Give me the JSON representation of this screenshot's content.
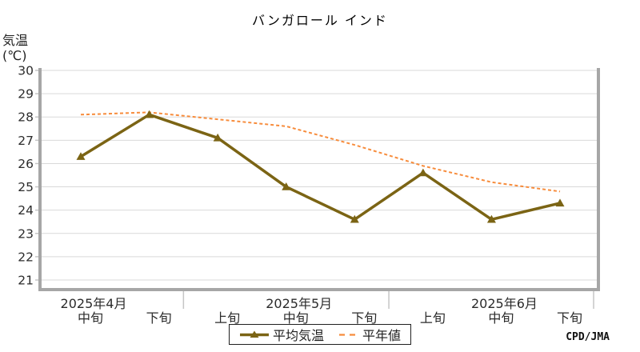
{
  "chart_data": {
    "type": "line",
    "title": "バンガロール インド",
    "y_axis_unit": [
      "気温",
      "(℃)"
    ],
    "x_categories": [
      "中旬",
      "下旬",
      "上旬",
      "中旬",
      "下旬",
      "上旬",
      "中旬",
      "下旬"
    ],
    "month_labels": [
      {
        "label": "2025年4月",
        "at_index": 0
      },
      {
        "label": "2025年5月",
        "at_index": 3
      },
      {
        "label": "2025年6月",
        "at_index": 6
      }
    ],
    "yticks": [
      30,
      29,
      28,
      27,
      26,
      25,
      24,
      23,
      22,
      21
    ],
    "ylim": [
      21,
      30
    ],
    "grid": true,
    "legend_position": "bottom-center",
    "series": [
      {
        "name": "平均気温",
        "line": "solid",
        "marker": "triangle",
        "color": "#7B6414",
        "values": [
          26.3,
          28.1,
          27.1,
          25.0,
          23.6,
          25.6,
          23.6,
          24.3
        ]
      },
      {
        "name": "平年値",
        "line": "dashed",
        "marker": "none",
        "color": "#F78C3C",
        "values": [
          28.1,
          28.2,
          27.9,
          27.6,
          26.8,
          25.9,
          25.2,
          24.8
        ]
      }
    ],
    "credit": "CPD/JMA",
    "colors": {
      "gridline": "#D9D9D9",
      "axis_bar": "#A6A6A6",
      "tick": "#C6C6C6",
      "text": "#2B2B2B"
    }
  }
}
